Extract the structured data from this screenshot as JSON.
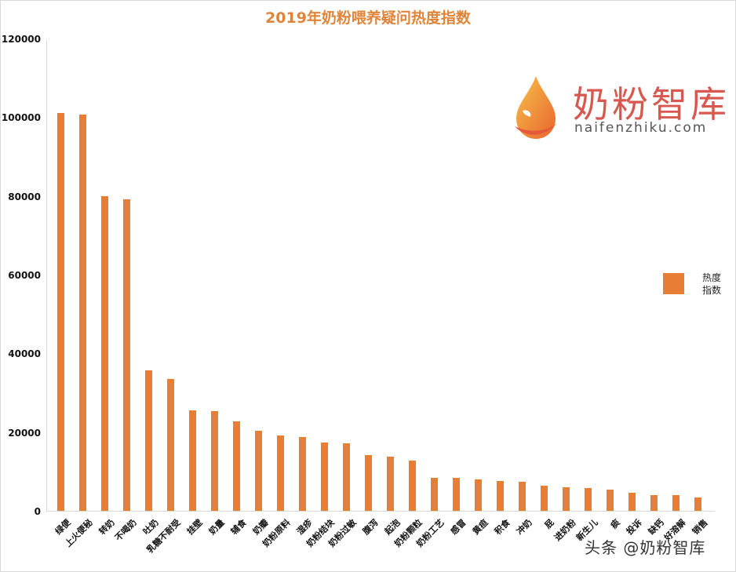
{
  "title": "2019年奶粉喂养疑问热度指数",
  "legend": {
    "label_line1": "热度",
    "label_line2": "指数",
    "color": "#e87e36"
  },
  "logo": {
    "name_cn": "奶粉智库",
    "domain_text": "naifenzhiku.com"
  },
  "watermark": "头条 @奶粉智库",
  "y_ticks": [
    "0",
    "20000",
    "40000",
    "60000",
    "80000",
    "100000",
    "120000"
  ],
  "chart_data": {
    "type": "bar",
    "title": "2019年奶粉喂养疑问热度指数",
    "xlabel": "",
    "ylabel": "",
    "ylim": [
      0,
      120000
    ],
    "y_ticks": [
      0,
      20000,
      40000,
      60000,
      80000,
      100000,
      120000
    ],
    "grid": false,
    "legend_position": "right",
    "categories": [
      "绿便",
      "上火便秘",
      "转奶",
      "不喝奶",
      "吐奶",
      "乳糖不耐受",
      "挂壁",
      "奶量",
      "辅食",
      "奶瓣",
      "奶粉原料",
      "湿疹",
      "奶粉结块",
      "奶粉过敏",
      "腹泻",
      "起泡",
      "奶粉颗粒",
      "奶粉工艺",
      "感冒",
      "黄疸",
      "积食",
      "冲奶",
      "屁",
      "进奶粉",
      "新生儿",
      "痰",
      "投诉",
      "缺钙",
      "好溶解",
      "销售"
    ],
    "series": [
      {
        "name": "热度指数",
        "color": "#e87e36",
        "values": [
          101000,
          100600,
          80000,
          79200,
          35700,
          33500,
          25500,
          25300,
          22700,
          20300,
          19100,
          18700,
          17300,
          17100,
          14100,
          13700,
          12700,
          8400,
          8300,
          7900,
          7500,
          7300,
          6300,
          5900,
          5700,
          5300,
          4500,
          3900,
          3900,
          3300
        ]
      }
    ]
  }
}
